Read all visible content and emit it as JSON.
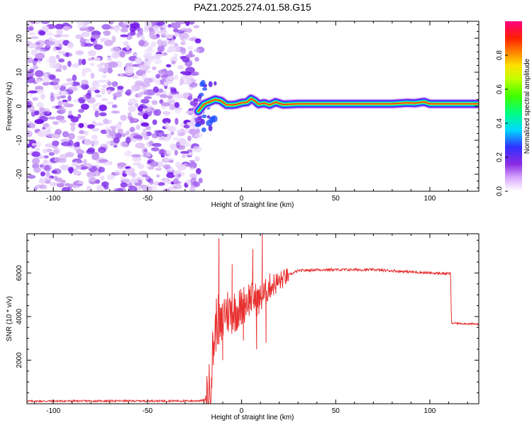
{
  "title": "PAZ1.2025.274.01.58.G15",
  "chart_data": [
    {
      "type": "heatmap",
      "xlabel": "Height of straight line (km)",
      "ylabel": "Frequency (Hz)",
      "xlim": [
        -114,
        126
      ],
      "ylim": [
        -25,
        25
      ],
      "xticks": [
        -100,
        -50,
        0,
        50,
        100
      ],
      "xtick_labels": [
        "-100",
        "-50",
        "0",
        "50",
        "100"
      ],
      "yticks": [
        -20,
        -10,
        0,
        10,
        20
      ],
      "ytick_labels": [
        "-20",
        "-10",
        "0",
        "10",
        "20"
      ],
      "noise_region_x": [
        -114,
        -24
      ],
      "signal_track": [
        {
          "x": -23,
          "y": -1.5
        },
        {
          "x": -20,
          "y": 0.6
        },
        {
          "x": -17,
          "y": 1.3
        },
        {
          "x": -14,
          "y": 2.0
        },
        {
          "x": -11,
          "y": 1.6
        },
        {
          "x": -8,
          "y": 0.4
        },
        {
          "x": -5,
          "y": 0.4
        },
        {
          "x": -3,
          "y": 0.5
        },
        {
          "x": 0,
          "y": 1.0
        },
        {
          "x": 3,
          "y": 1.2
        },
        {
          "x": 5,
          "y": 2.2
        },
        {
          "x": 7,
          "y": 1.6
        },
        {
          "x": 9,
          "y": 0.6
        },
        {
          "x": 12,
          "y": 0.9
        },
        {
          "x": 15,
          "y": 0.4
        },
        {
          "x": 18,
          "y": 1.2
        },
        {
          "x": 22,
          "y": 0.5
        },
        {
          "x": 26,
          "y": 0.6
        },
        {
          "x": 30,
          "y": 0.7
        },
        {
          "x": 40,
          "y": 0.7
        },
        {
          "x": 60,
          "y": 0.7
        },
        {
          "x": 80,
          "y": 0.7
        },
        {
          "x": 88,
          "y": 1.0
        },
        {
          "x": 92,
          "y": 0.9
        },
        {
          "x": 97,
          "y": 1.3
        },
        {
          "x": 100,
          "y": 0.7
        },
        {
          "x": 110,
          "y": 0.7
        },
        {
          "x": 126,
          "y": 0.7
        }
      ]
    },
    {
      "type": "line",
      "xlabel": "Height of straight line (km)",
      "ylabel": "SNR (10 * v/v)",
      "xlim": [
        -114,
        126
      ],
      "ylim": [
        0,
        7800
      ],
      "xticks": [
        -100,
        -50,
        0,
        50,
        100
      ],
      "xtick_labels": [
        "-100",
        "-50",
        "0",
        "50",
        "100"
      ],
      "yticks": [
        2000,
        4000,
        6000
      ],
      "ytick_labels": [
        "2000",
        "4000",
        "6000"
      ],
      "color": "#e83030",
      "series": [
        {
          "values": [
            {
              "x": -114,
              "y": 120
            },
            {
              "x": -60,
              "y": 130
            },
            {
              "x": -25,
              "y": 130
            },
            {
              "x": -19,
              "y": 160
            },
            {
              "x": -17,
              "y": 600
            },
            {
              "x": -15,
              "y": 2600
            },
            {
              "x": -13,
              "y": 4000
            },
            {
              "x": -11,
              "y": 3300
            },
            {
              "x": -9,
              "y": 4300
            },
            {
              "x": -6,
              "y": 4200
            },
            {
              "x": -3,
              "y": 4300
            },
            {
              "x": 0,
              "y": 4400
            },
            {
              "x": 3,
              "y": 4800
            },
            {
              "x": 6,
              "y": 4900
            },
            {
              "x": 9,
              "y": 4700
            },
            {
              "x": 12,
              "y": 5000
            },
            {
              "x": 15,
              "y": 5400
            },
            {
              "x": 20,
              "y": 5600
            },
            {
              "x": 25,
              "y": 5900
            },
            {
              "x": 30,
              "y": 6100
            },
            {
              "x": 40,
              "y": 6150
            },
            {
              "x": 50,
              "y": 6150
            },
            {
              "x": 60,
              "y": 6150
            },
            {
              "x": 70,
              "y": 6150
            },
            {
              "x": 80,
              "y": 6100
            },
            {
              "x": 90,
              "y": 6050
            },
            {
              "x": 100,
              "y": 6000
            },
            {
              "x": 110,
              "y": 5970
            },
            {
              "x": 111,
              "y": 5970
            },
            {
              "x": 111.5,
              "y": 3700
            },
            {
              "x": 126,
              "y": 3650
            }
          ],
          "spikes": [
            {
              "x": -12,
              "y": 7600
            },
            {
              "x": -10,
              "y": 2000
            },
            {
              "x": -5,
              "y": 6400
            },
            {
              "x": 1,
              "y": 2900
            },
            {
              "x": 6,
              "y": 7100
            },
            {
              "x": 8,
              "y": 2500
            },
            {
              "x": 11,
              "y": 7800
            },
            {
              "x": 13,
              "y": 2800
            },
            {
              "x": 16,
              "y": 5300
            }
          ]
        }
      ]
    }
  ],
  "colorbar": {
    "label": "Normalized spectral amplitude",
    "range": [
      0,
      1
    ],
    "ticks": [
      0.0,
      0.2,
      0.4,
      0.6,
      0.8
    ],
    "tick_labels": [
      "0.0",
      "0.2",
      "0.4",
      "0.6",
      "0.8"
    ]
  }
}
